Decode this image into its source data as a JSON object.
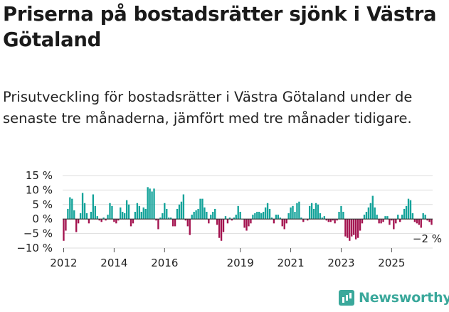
{
  "header": {
    "title": "Priserna på bostadsrätter sjönk i Västra Götaland",
    "subtitle": "Prisutveckling för bostadsrätter i Västra Götaland under de senaste tre månaderna, jämfört med tre månader tidigare."
  },
  "brand": {
    "name": "Newsworthy",
    "color": "#3aa89b"
  },
  "colors": {
    "positive": "#14a39a",
    "negative": "#a3134f",
    "grid": "#dddddd",
    "zero_line": "#333333"
  },
  "chart_data": {
    "type": "bar",
    "title": "",
    "xlabel": "",
    "ylabel": "",
    "x_start": "2012-01",
    "x_step": "1 month",
    "ylim": [
      -10,
      15
    ],
    "yticks": [
      15,
      10,
      5,
      0,
      -5,
      -10
    ],
    "ytick_labels": [
      "15 %",
      "10 %",
      "5 %",
      "0 %",
      "−5 %",
      "−10 %"
    ],
    "xticks": [
      "2012",
      "2014",
      "2016",
      "2019",
      "2021",
      "2023",
      "2025"
    ],
    "xtick_months": [
      "2012-01",
      "2014-01",
      "2016-01",
      "2019-01",
      "2021-01",
      "2023-01",
      "2025-01"
    ],
    "grid": true,
    "last_value_label": "−2 %",
    "values": [
      -7.5,
      -4,
      3.5,
      7.5,
      7,
      3,
      -4.5,
      -1.5,
      2,
      9,
      5.5,
      2,
      -1.5,
      2.5,
      8.5,
      4.5,
      1,
      -0.5,
      -1,
      0.5,
      -0.5,
      1.5,
      5.5,
      4.5,
      -1,
      -1.5,
      -0.5,
      4,
      2.5,
      2,
      6.5,
      5,
      -2.5,
      -1.5,
      2.5,
      5.5,
      4.5,
      2.5,
      4,
      3.5,
      11,
      10.5,
      9.5,
      10.5,
      -0.5,
      -3.5,
      0.5,
      2,
      5.5,
      3.5,
      0.5,
      0.5,
      -2.5,
      -2.5,
      3.5,
      5,
      6,
      8.5,
      -0.5,
      -2.5,
      -5.5,
      1.5,
      2.5,
      3,
      3.5,
      7,
      7,
      4,
      2.5,
      -1.5,
      1.5,
      2.5,
      3.5,
      -2,
      -6.5,
      -7.5,
      -4.5,
      1,
      -1.5,
      0.5,
      -0.5,
      0.5,
      1.5,
      4.5,
      2.5,
      0,
      -3,
      -4,
      -2.5,
      -1.5,
      1.5,
      2,
      2.5,
      2.5,
      2,
      2.5,
      4,
      5.5,
      3.5,
      0.5,
      -1.5,
      1.5,
      1.5,
      0.5,
      -2.5,
      -3.5,
      -1.5,
      2,
      4,
      4.5,
      2.5,
      5.5,
      6,
      0.5,
      -1,
      0,
      -0.5,
      4.5,
      5.5,
      3.5,
      5.5,
      5,
      2,
      0.5,
      1,
      -0.5,
      -1,
      -1,
      -0.5,
      -1.5,
      -0.5,
      2.5,
      4.5,
      2.5,
      -6,
      -6.5,
      -7.5,
      -6,
      -5.5,
      -7,
      -6.5,
      -4,
      -1.5,
      1.5,
      2.5,
      4,
      5.5,
      8,
      4,
      1.5,
      -1.5,
      -1.5,
      -1,
      1,
      1,
      -2,
      -0.5,
      -3.5,
      -1.5,
      1.5,
      -1,
      1.5,
      3.5,
      4.5,
      7,
      6.5,
      2,
      -1,
      -1.5,
      -2,
      -3,
      2,
      1.5,
      -0.5,
      -1,
      -2
    ]
  }
}
